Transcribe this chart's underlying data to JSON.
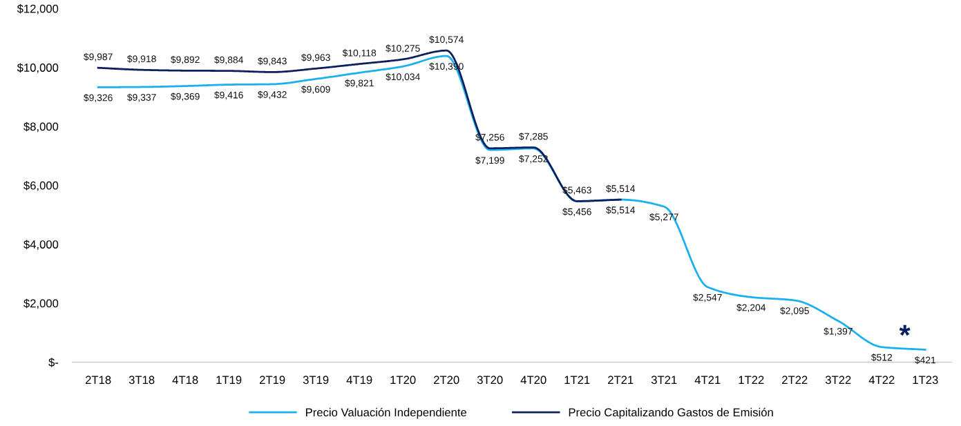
{
  "chart_data": {
    "type": "line",
    "categories": [
      "2T18",
      "3T18",
      "4T18",
      "1T19",
      "2T19",
      "3T19",
      "4T19",
      "1T20",
      "2T20",
      "3T20",
      "4T20",
      "1T21",
      "2T21",
      "3T21",
      "4T21",
      "1T22",
      "2T22",
      "3T22",
      "4T22",
      "1T23"
    ],
    "series": [
      {
        "name": "Precio Valuación Independiente",
        "color": "#1ab0ef",
        "values": [
          9326,
          9337,
          9369,
          9416,
          9432,
          9609,
          9821,
          10034,
          10390,
          7199,
          7252,
          5456,
          5514,
          5277,
          2547,
          2204,
          2095,
          1397,
          512,
          421
        ],
        "value_labels": [
          "$9,326",
          "$9,337",
          "$9,369",
          "$9,416",
          "$9,432",
          "$9,609",
          "$9,821",
          "$10,034",
          "$10,390",
          "$7,199",
          "$7,252",
          "$5,456",
          "$5,514",
          "$5,277",
          "$2,547",
          "$2,204",
          "$2,095",
          "$1,397",
          "$512",
          "$421"
        ]
      },
      {
        "name": "Precio Capitalizando Gastos de Emisión",
        "color": "#0c1f5e",
        "values": [
          9987,
          9918,
          9892,
          9884,
          9843,
          9963,
          10118,
          10275,
          10574,
          7256,
          7285,
          5463,
          5514,
          null,
          null,
          null,
          null,
          null,
          null,
          null
        ],
        "value_labels": [
          "$9,987",
          "$9,918",
          "$9,892",
          "$9,884",
          "$9,843",
          "$9,963",
          "$10,118",
          "$10,275",
          "$10,574",
          "$7,256",
          "$7,285",
          "$5,463",
          "$5,514",
          null,
          null,
          null,
          null,
          null,
          null,
          null
        ]
      }
    ],
    "ylim": [
      0,
      12000
    ],
    "yticks": [
      {
        "value": 0,
        "label": "$-"
      },
      {
        "value": 2000,
        "label": "$2,000"
      },
      {
        "value": 4000,
        "label": "$4,000"
      },
      {
        "value": 6000,
        "label": "$6,000"
      },
      {
        "value": 8000,
        "label": "$8,000"
      },
      {
        "value": 10000,
        "label": "$10,000"
      },
      {
        "value": 12000,
        "label": "$12,000"
      }
    ],
    "grid": false,
    "legend": "bottom",
    "marker": "none",
    "line_style": "solid",
    "annotations": [
      "*"
    ]
  }
}
